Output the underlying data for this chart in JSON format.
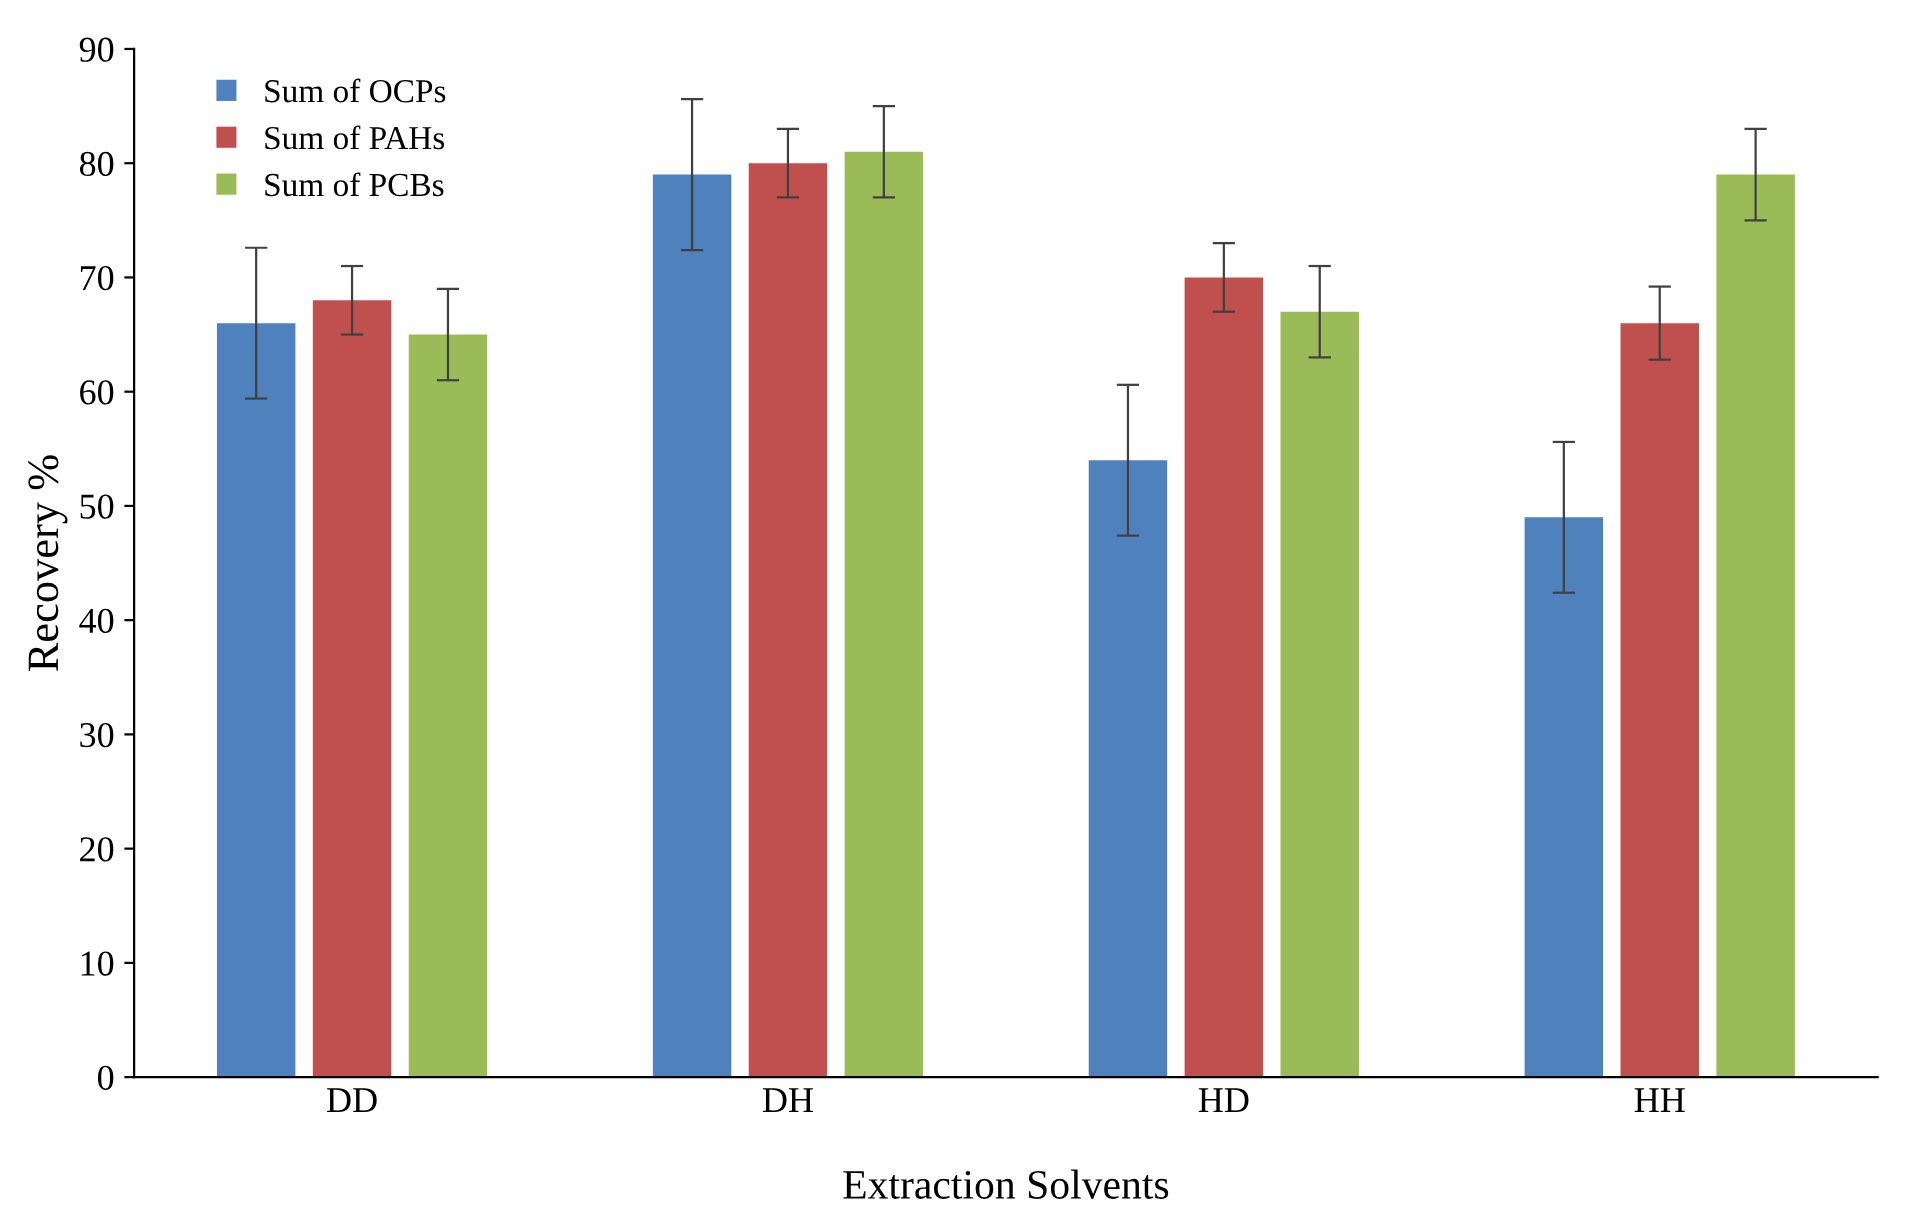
{
  "chart_data": {
    "type": "bar",
    "xlabel": "Extraction Solvents",
    "ylabel": "Recovery %",
    "categories": [
      "DD",
      "DH",
      "HD",
      "HH"
    ],
    "series": [
      {
        "name": "Sum of OCPs",
        "color": "#4f81bd",
        "values": [
          66,
          79,
          54,
          49
        ],
        "errors": [
          6.6,
          6.6,
          6.6,
          6.6
        ]
      },
      {
        "name": "Sum of PAHs",
        "color": "#c0504d",
        "values": [
          68,
          80,
          70,
          66
        ],
        "errors": [
          3,
          3,
          3,
          3.2
        ]
      },
      {
        "name": "Sum of PCBs",
        "color": "#9bbb59",
        "values": [
          65,
          81,
          67,
          79
        ],
        "errors": [
          4,
          4,
          4,
          4
        ]
      }
    ],
    "ylim": [
      0,
      90
    ],
    "yticks": [
      0,
      10,
      20,
      30,
      40,
      50,
      60,
      70,
      80,
      90
    ],
    "grid": false,
    "legend": "top left"
  }
}
